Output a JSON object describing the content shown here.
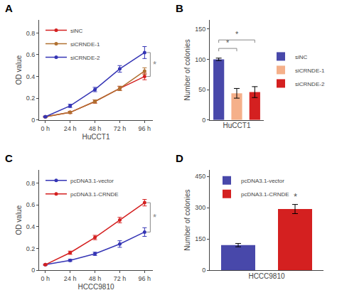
{
  "chart_data": [
    {
      "type": "line",
      "title": "A",
      "xlabel": "HuCCT1",
      "ylabel": "OD value",
      "x": [
        0,
        24,
        48,
        72,
        96
      ],
      "series": [
        {
          "name": "siNC",
          "color": "#d42020",
          "values": [
            0.03,
            0.07,
            0.17,
            0.29,
            0.4
          ],
          "yerr": [
            0.005,
            0.01,
            0.015,
            0.02,
            0.03
          ]
        },
        {
          "name": "siCRNDE-1",
          "color": "#b07030",
          "values": [
            0.03,
            0.07,
            0.17,
            0.29,
            0.45
          ],
          "yerr": [
            0.005,
            0.01,
            0.015,
            0.02,
            0.03
          ]
        },
        {
          "name": "siCRNDE-2",
          "color": "#3535b5",
          "values": [
            0.03,
            0.13,
            0.28,
            0.47,
            0.62
          ],
          "yerr": [
            0.005,
            0.015,
            0.02,
            0.03,
            0.055
          ]
        }
      ],
      "xlim": [
        -6,
        104
      ],
      "xticks": [
        {
          "value": 0,
          "label": "0 h"
        },
        {
          "value": 24,
          "label": "24 h"
        },
        {
          "value": 48,
          "label": "48 h"
        },
        {
          "value": 72,
          "label": "72 h"
        },
        {
          "value": 96,
          "label": "96 h"
        }
      ],
      "ylim": [
        0,
        0.92
      ],
      "yticks": [
        0,
        0.2,
        0.4,
        0.6,
        0.8
      ],
      "marker": "circle",
      "grid": false,
      "legend": "upper left",
      "annotations": [
        {
          "text": "*",
          "x": 96,
          "y": [
            0.4,
            0.62
          ]
        }
      ]
    },
    {
      "type": "bar",
      "title": "B",
      "xlabel": "HuCCT1",
      "ylabel": "Number of colonies",
      "categories": [
        "siNC",
        "siCRNDE-1",
        "siCRNDE-2"
      ],
      "values": [
        100,
        44,
        46
      ],
      "yerr": [
        2,
        8,
        9
      ],
      "colors": [
        "#4848aa",
        "#f5b08a",
        "#d42020"
      ],
      "ylim": [
        0,
        165
      ],
      "yticks": [
        0,
        50,
        100,
        150
      ],
      "grid": false,
      "legend": "right",
      "tick_labels": "y",
      "annotations": [
        {
          "text": "*",
          "x": [
            0,
            1
          ],
          "y": 118
        },
        {
          "text": "*",
          "x": [
            0,
            2
          ],
          "y": 132
        }
      ]
    },
    {
      "type": "line",
      "title": "C",
      "xlabel": "HCCC9810",
      "ylabel": "OD value",
      "x": [
        0,
        24,
        48,
        72,
        96
      ],
      "series": [
        {
          "name": "pcDNA3.1-vector",
          "color": "#3535b5",
          "values": [
            0.05,
            0.09,
            0.15,
            0.24,
            0.35
          ],
          "yerr": [
            0.005,
            0.01,
            0.015,
            0.03,
            0.04
          ]
        },
        {
          "name": "pcDNA3.1-CRNDE",
          "color": "#d42020",
          "values": [
            0.05,
            0.16,
            0.3,
            0.46,
            0.62
          ],
          "yerr": [
            0.005,
            0.015,
            0.02,
            0.025,
            0.03
          ]
        }
      ],
      "xlim": [
        -6,
        104
      ],
      "xticks": [
        {
          "value": 0,
          "label": "0 h"
        },
        {
          "value": 24,
          "label": "24 h"
        },
        {
          "value": 48,
          "label": "48 h"
        },
        {
          "value": 72,
          "label": "72 h"
        },
        {
          "value": 96,
          "label": "96 h"
        }
      ],
      "ylim": [
        0,
        0.92
      ],
      "yticks": [
        0,
        0.2,
        0.4,
        0.6,
        0.8
      ],
      "marker": "circle",
      "grid": false,
      "legend": "upper left",
      "annotations": [
        {
          "text": "*",
          "x": 96,
          "y": [
            0.35,
            0.62
          ]
        }
      ]
    },
    {
      "type": "bar",
      "title": "D",
      "xlabel": "HCCC9810",
      "ylabel": "Number of colonies",
      "categories": [
        "pcDNA3.1-vector",
        "pcDNA3.1-CRNDE"
      ],
      "values": [
        120,
        293
      ],
      "yerr": [
        8,
        22
      ],
      "colors": [
        "#4848aa",
        "#d42020"
      ],
      "ylim": [
        0,
        480
      ],
      "yticks": [
        0,
        150,
        300,
        450
      ],
      "grid": false,
      "legend": "upper left",
      "tick_labels": "y",
      "annotations": [
        {
          "text": "*",
          "x": 1
        }
      ]
    }
  ]
}
